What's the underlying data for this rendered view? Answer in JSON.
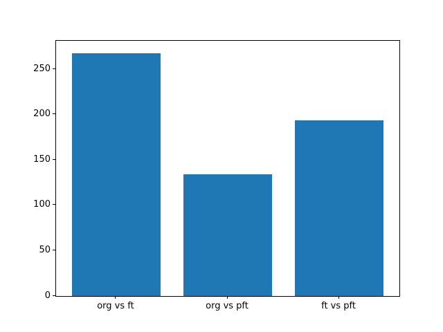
{
  "chart_data": {
    "type": "bar",
    "categories": [
      "org vs ft",
      "org vs pft",
      "ft vs pft"
    ],
    "values": [
      268,
      134,
      194
    ],
    "yticks": [
      0,
      50,
      100,
      150,
      200,
      250
    ],
    "ylim": [
      0,
      281.4
    ],
    "xlim": [
      -0.54,
      2.54
    ],
    "bar_width_fraction": 0.8,
    "bar_color": "#1f77b4",
    "spine_color": "#000000",
    "tick_label_color": "#000000",
    "background_color": "#ffffff",
    "grid": false,
    "legend": null
  }
}
